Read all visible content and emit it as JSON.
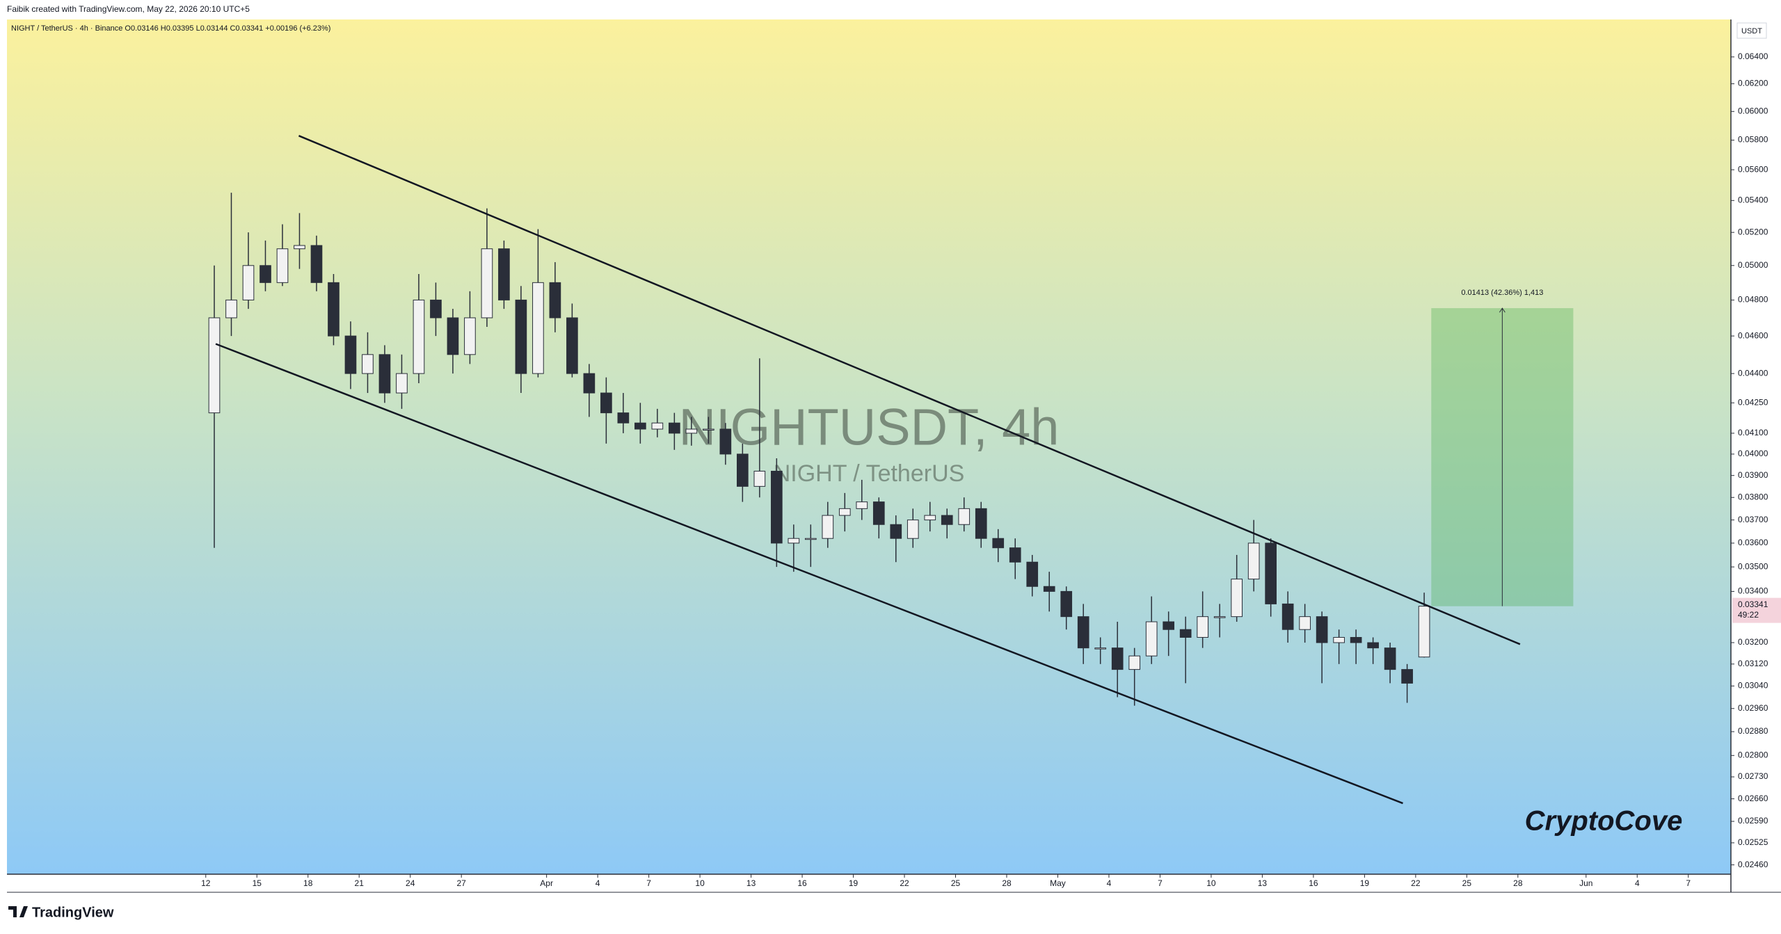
{
  "header": {
    "credit": "Faibik created with TradingView.com, May 22, 2026 20:10 UTC+5",
    "brand": "TradingView"
  },
  "chart_data": {
    "type": "candlestick",
    "legend_text": "NIGHT / TetherUS · 4h · Binance  O0.03146  H0.03395  L0.03144  C0.03341  +0.00196 (+6.23%)",
    "watermark": "NIGHTUSDT, 4h",
    "watermark_subtitle": "NIGHT / TetherUS",
    "annotation": "CryptoCove",
    "currency": "USDT",
    "log_scale": true,
    "up_color": "#f2f2f2",
    "down_color": "#2a2e39",
    "x": [
      "2026-03-12",
      "2026-03-13",
      "2026-03-14",
      "2026-03-15",
      "2026-03-16",
      "2026-03-17",
      "2026-03-18",
      "2026-03-19",
      "2026-03-20",
      "2026-03-21",
      "2026-03-22",
      "2026-03-23",
      "2026-03-24",
      "2026-03-25",
      "2026-03-26",
      "2026-03-27",
      "2026-03-28",
      "2026-03-29",
      "2026-03-30",
      "2026-03-31",
      "2026-04-01",
      "2026-04-02",
      "2026-04-03",
      "2026-04-04",
      "2026-04-05",
      "2026-04-06",
      "2026-04-07",
      "2026-04-08",
      "2026-04-09",
      "2026-04-10",
      "2026-04-11",
      "2026-04-12",
      "2026-04-13",
      "2026-04-14",
      "2026-04-15",
      "2026-04-16",
      "2026-04-17",
      "2026-04-18",
      "2026-04-19",
      "2026-04-20",
      "2026-04-21",
      "2026-04-22",
      "2026-04-23",
      "2026-04-24",
      "2026-04-25",
      "2026-04-26",
      "2026-04-27",
      "2026-04-28",
      "2026-04-29",
      "2026-04-30",
      "2026-05-01",
      "2026-05-02",
      "2026-05-03",
      "2026-05-04",
      "2026-05-05",
      "2026-05-06",
      "2026-05-07",
      "2026-05-08",
      "2026-05-09",
      "2026-05-10",
      "2026-05-11",
      "2026-05-12",
      "2026-05-13",
      "2026-05-14",
      "2026-05-15",
      "2026-05-16",
      "2026-05-17",
      "2026-05-18",
      "2026-05-19",
      "2026-05-20",
      "2026-05-21",
      "2026-05-22"
    ],
    "open": [
      0.042,
      0.047,
      0.048,
      0.05,
      0.049,
      0.051,
      0.0512,
      0.049,
      0.046,
      0.044,
      0.045,
      0.043,
      0.044,
      0.048,
      0.047,
      0.045,
      0.047,
      0.051,
      0.048,
      0.044,
      0.049,
      0.047,
      0.044,
      0.043,
      0.042,
      0.0415,
      0.0412,
      0.0415,
      0.041,
      0.0412,
      0.0412,
      0.04,
      0.0385,
      0.0392,
      0.036,
      0.0362,
      0.0362,
      0.0372,
      0.0375,
      0.0378,
      0.0368,
      0.0362,
      0.037,
      0.0372,
      0.0368,
      0.0375,
      0.0362,
      0.0358,
      0.0352,
      0.0342,
      0.034,
      0.033,
      0.0318,
      0.0318,
      0.031,
      0.0315,
      0.0328,
      0.0325,
      0.0322,
      0.033,
      0.033,
      0.0345,
      0.036,
      0.0335,
      0.0325,
      0.033,
      0.032,
      0.0322,
      0.032,
      0.0318,
      0.031,
      0.03146
    ],
    "high": [
      0.05,
      0.0545,
      0.052,
      0.0515,
      0.0525,
      0.0532,
      0.0518,
      0.0495,
      0.0468,
      0.0462,
      0.0455,
      0.045,
      0.0495,
      0.049,
      0.0475,
      0.0485,
      0.0535,
      0.0515,
      0.0488,
      0.0522,
      0.0502,
      0.0478,
      0.0445,
      0.0438,
      0.043,
      0.0425,
      0.0422,
      0.042,
      0.0418,
      0.0418,
      0.0415,
      0.0405,
      0.0448,
      0.0398,
      0.0368,
      0.0368,
      0.0378,
      0.0382,
      0.0388,
      0.038,
      0.0372,
      0.0375,
      0.0378,
      0.0375,
      0.038,
      0.0378,
      0.0366,
      0.0362,
      0.0355,
      0.0348,
      0.0342,
      0.0335,
      0.0322,
      0.0328,
      0.0318,
      0.0338,
      0.0332,
      0.033,
      0.034,
      0.0335,
      0.0355,
      0.037,
      0.0362,
      0.034,
      0.0335,
      0.0332,
      0.0325,
      0.0325,
      0.0322,
      0.032,
      0.0312,
      0.03395
    ],
    "low": [
      0.0358,
      0.046,
      0.0475,
      0.0485,
      0.0488,
      0.0498,
      0.0485,
      0.0455,
      0.0432,
      0.043,
      0.0425,
      0.0422,
      0.0435,
      0.046,
      0.044,
      0.0445,
      0.0465,
      0.0475,
      0.043,
      0.0438,
      0.0462,
      0.0438,
      0.0418,
      0.0405,
      0.041,
      0.0405,
      0.0408,
      0.0402,
      0.0404,
      0.0405,
      0.0395,
      0.0378,
      0.038,
      0.035,
      0.0348,
      0.035,
      0.0358,
      0.0365,
      0.037,
      0.0362,
      0.0352,
      0.0358,
      0.0365,
      0.0362,
      0.0365,
      0.0358,
      0.0352,
      0.0345,
      0.0338,
      0.0332,
      0.0325,
      0.0312,
      0.0312,
      0.03,
      0.0297,
      0.0312,
      0.0315,
      0.0305,
      0.0318,
      0.0322,
      0.0328,
      0.034,
      0.033,
      0.032,
      0.032,
      0.0305,
      0.0312,
      0.0312,
      0.0312,
      0.0305,
      0.0298,
      0.03144
    ],
    "close": [
      0.047,
      0.048,
      0.05,
      0.049,
      0.051,
      0.0512,
      0.049,
      0.046,
      0.044,
      0.045,
      0.043,
      0.044,
      0.048,
      0.047,
      0.045,
      0.047,
      0.051,
      0.048,
      0.044,
      0.049,
      0.047,
      0.044,
      0.043,
      0.042,
      0.0415,
      0.0412,
      0.0415,
      0.041,
      0.0412,
      0.0412,
      0.04,
      0.0385,
      0.0392,
      0.036,
      0.0362,
      0.0362,
      0.0372,
      0.0375,
      0.0378,
      0.0368,
      0.0362,
      0.037,
      0.0372,
      0.0368,
      0.0375,
      0.0362,
      0.0358,
      0.0352,
      0.0342,
      0.034,
      0.033,
      0.0318,
      0.0318,
      0.031,
      0.0315,
      0.0328,
      0.0325,
      0.0322,
      0.033,
      0.033,
      0.0345,
      0.036,
      0.0335,
      0.0325,
      0.033,
      0.032,
      0.0322,
      0.032,
      0.0318,
      0.031,
      0.0305,
      0.03341
    ],
    "trendlines": [
      {
        "x": [
          "2026-03-17T11:00",
          "2026-05-28T03:00"
        ],
        "y": [
          0.0583,
          0.03194
        ]
      },
      {
        "x": [
          "2026-03-12T14:00",
          "2026-05-21T06:00"
        ],
        "y": [
          0.04557,
          0.02646
        ]
      }
    ],
    "position": {
      "x": [
        "2026-05-22T22:00",
        "2026-05-31T06:00"
      ],
      "entry": 0.03341,
      "target": 0.04754,
      "label": "0.01413 (42.36%) 1,413"
    },
    "last_price": {
      "value": 0.03341,
      "label": "0.03341",
      "countdown": "49:22"
    },
    "xlim": [
      "2026-02-28T08:00",
      "2026-06-09T12:00"
    ],
    "ylim": [
      0.02433,
      0.0669
    ],
    "xticks": [
      {
        "value": "2026-03-12",
        "label": "12"
      },
      {
        "value": "2026-03-15",
        "label": "15"
      },
      {
        "value": "2026-03-18",
        "label": "18"
      },
      {
        "value": "2026-03-21",
        "label": "21"
      },
      {
        "value": "2026-03-24",
        "label": "24"
      },
      {
        "value": "2026-03-27",
        "label": "27"
      },
      {
        "value": "2026-04-01",
        "label": "Apr"
      },
      {
        "value": "2026-04-04",
        "label": "4"
      },
      {
        "value": "2026-04-07",
        "label": "7"
      },
      {
        "value": "2026-04-10",
        "label": "10"
      },
      {
        "value": "2026-04-13",
        "label": "13"
      },
      {
        "value": "2026-04-16",
        "label": "16"
      },
      {
        "value": "2026-04-19",
        "label": "19"
      },
      {
        "value": "2026-04-22",
        "label": "22"
      },
      {
        "value": "2026-04-25",
        "label": "25"
      },
      {
        "value": "2026-04-28",
        "label": "28"
      },
      {
        "value": "2026-05-01",
        "label": "May"
      },
      {
        "value": "2026-05-04",
        "label": "4"
      },
      {
        "value": "2026-05-07",
        "label": "7"
      },
      {
        "value": "2026-05-10",
        "label": "10"
      },
      {
        "value": "2026-05-13",
        "label": "13"
      },
      {
        "value": "2026-05-16",
        "label": "16"
      },
      {
        "value": "2026-05-19",
        "label": "19"
      },
      {
        "value": "2026-05-22",
        "label": "22"
      },
      {
        "value": "2026-05-25",
        "label": "25"
      },
      {
        "value": "2026-05-28",
        "label": "28"
      },
      {
        "value": "2026-06-01",
        "label": "Jun"
      },
      {
        "value": "2026-06-04",
        "label": "4"
      },
      {
        "value": "2026-06-07",
        "label": "7"
      }
    ],
    "yticks": [
      {
        "value": 0.064,
        "label": "0.06400"
      },
      {
        "value": 0.062,
        "label": "0.06200"
      },
      {
        "value": 0.06,
        "label": "0.06000"
      },
      {
        "value": 0.058,
        "label": "0.05800"
      },
      {
        "value": 0.056,
        "label": "0.05600"
      },
      {
        "value": 0.054,
        "label": "0.05400"
      },
      {
        "value": 0.052,
        "label": "0.05200"
      },
      {
        "value": 0.05,
        "label": "0.05000"
      },
      {
        "value": 0.048,
        "label": "0.04800"
      },
      {
        "value": 0.046,
        "label": "0.04600"
      },
      {
        "value": 0.044,
        "label": "0.04400"
      },
      {
        "value": 0.0425,
        "label": "0.04250"
      },
      {
        "value": 0.041,
        "label": "0.04100"
      },
      {
        "value": 0.04,
        "label": "0.04000"
      },
      {
        "value": 0.039,
        "label": "0.03900"
      },
      {
        "value": 0.038,
        "label": "0.03800"
      },
      {
        "value": 0.037,
        "label": "0.03700"
      },
      {
        "value": 0.036,
        "label": "0.03600"
      },
      {
        "value": 0.035,
        "label": "0.03500"
      },
      {
        "value": 0.034,
        "label": "0.03400"
      },
      {
        "value": 0.032,
        "label": "0.03200"
      },
      {
        "value": 0.0312,
        "label": "0.03120"
      },
      {
        "value": 0.0304,
        "label": "0.03040"
      },
      {
        "value": 0.0296,
        "label": "0.02960"
      },
      {
        "value": 0.0288,
        "label": "0.02880"
      },
      {
        "value": 0.028,
        "label": "0.02800"
      },
      {
        "value": 0.0273,
        "label": "0.02730"
      },
      {
        "value": 0.0266,
        "label": "0.02660"
      },
      {
        "value": 0.0259,
        "label": "0.02590"
      },
      {
        "value": 0.02525,
        "label": "0.02525"
      },
      {
        "value": 0.0246,
        "label": "0.02460"
      }
    ]
  }
}
